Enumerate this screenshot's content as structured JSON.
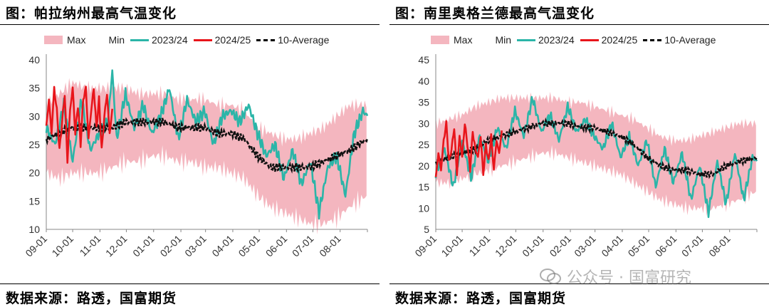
{
  "colors": {
    "max_min_band": "#f4b6bf",
    "season_2023_24": "#2bb5a8",
    "season_2024_25": "#e8151b",
    "ten_year_average": "#111111"
  },
  "chart_data": [
    {
      "type": "area",
      "title": "图：帕拉纳州最高气温变化",
      "source": "数据来源：路透，国富期货",
      "ylim": [
        10,
        40
      ],
      "yticks": [
        10,
        15,
        20,
        25,
        30,
        35,
        40
      ],
      "xlim": [
        0,
        365
      ],
      "x_tick_labels": [
        "09-01",
        "10-01",
        "11-01",
        "12-01",
        "01-01",
        "02-01",
        "03-01",
        "04-01",
        "05-01",
        "06-01",
        "07-01",
        "08-01"
      ],
      "x_tick_positions": [
        0,
        30,
        61,
        91,
        122,
        153,
        181,
        212,
        242,
        273,
        303,
        334
      ],
      "legend": [
        "Max",
        "Min",
        "2023/24",
        "2024/25",
        "10-Average"
      ],
      "series": [
        {
          "name": "Max",
          "x": [
            0,
            15,
            30,
            45,
            60,
            75,
            90,
            105,
            120,
            135,
            150,
            165,
            180,
            195,
            210,
            225,
            240,
            255,
            270,
            285,
            300,
            315,
            330,
            345,
            365
          ],
          "values": [
            32,
            34,
            36,
            35,
            35,
            35,
            35,
            34,
            34,
            34,
            33,
            33,
            33,
            32,
            32,
            31,
            28,
            27,
            26,
            26,
            27,
            28,
            30,
            32,
            32
          ]
        },
        {
          "name": "Min",
          "x": [
            0,
            15,
            30,
            45,
            60,
            75,
            90,
            105,
            120,
            135,
            150,
            165,
            180,
            195,
            210,
            225,
            240,
            255,
            270,
            285,
            300,
            315,
            330,
            345,
            365
          ],
          "values": [
            20,
            19,
            20,
            20,
            20,
            21,
            22,
            22,
            23,
            23,
            22,
            22,
            21,
            21,
            20,
            19,
            16,
            14,
            13,
            12,
            11,
            11,
            12,
            14,
            16
          ]
        },
        {
          "name": "2023/24",
          "x": [
            0,
            10,
            20,
            30,
            40,
            50,
            60,
            70,
            75,
            80,
            90,
            100,
            110,
            120,
            130,
            140,
            150,
            160,
            170,
            180,
            190,
            200,
            210,
            220,
            230,
            240,
            250,
            260,
            270,
            280,
            290,
            300,
            310,
            320,
            330,
            340,
            350,
            360,
            365
          ],
          "values": [
            28,
            25,
            32,
            22,
            33,
            24,
            27,
            29,
            38,
            26,
            34,
            28,
            32,
            27,
            30,
            35,
            26,
            33,
            29,
            31,
            25,
            30,
            31,
            29,
            32,
            27,
            23,
            25,
            19,
            24,
            18,
            22,
            13,
            21,
            23,
            16,
            27,
            31,
            30
          ]
        },
        {
          "name": "2024/25",
          "x": [
            0,
            3,
            6,
            9,
            12,
            15,
            18,
            21,
            24,
            27,
            30,
            33,
            36,
            39,
            42,
            45,
            48,
            51,
            54,
            57,
            60,
            63,
            66,
            69,
            72,
            75
          ],
          "values": [
            28,
            33,
            27,
            35,
            31,
            24,
            29,
            34,
            22,
            31,
            35,
            27,
            32,
            25,
            33,
            35,
            26,
            31,
            35,
            28,
            33,
            24,
            30,
            34,
            27,
            31
          ]
        },
        {
          "name": "10-Average",
          "x": [
            0,
            15,
            30,
            45,
            60,
            75,
            90,
            105,
            120,
            135,
            150,
            165,
            180,
            195,
            210,
            225,
            240,
            255,
            270,
            285,
            300,
            315,
            330,
            345,
            365
          ],
          "values": [
            26,
            27,
            28,
            28,
            28,
            28,
            29,
            29,
            29,
            29,
            28,
            28,
            28,
            27,
            27,
            26,
            23,
            21,
            21,
            21,
            21,
            22,
            23,
            24,
            26
          ]
        }
      ]
    },
    {
      "type": "area",
      "title": "图：南里奥格兰德最高气温变化",
      "source": "数据来源：路透，国富期货",
      "ylim": [
        5,
        45
      ],
      "yticks": [
        5,
        10,
        15,
        20,
        25,
        30,
        35,
        40,
        45
      ],
      "xlim": [
        0,
        365
      ],
      "x_tick_labels": [
        "09-01",
        "10-01",
        "11-01",
        "12-01",
        "01-01",
        "02-01",
        "03-01",
        "04-01",
        "05-01",
        "06-01",
        "07-01",
        "08-01"
      ],
      "x_tick_positions": [
        0,
        30,
        61,
        91,
        122,
        153,
        181,
        212,
        242,
        273,
        303,
        334
      ],
      "legend": [
        "Max",
        "Min",
        "2023/24",
        "2024/25",
        "10-Average"
      ],
      "series": [
        {
          "name": "Max",
          "x": [
            0,
            15,
            30,
            45,
            60,
            75,
            90,
            105,
            120,
            135,
            150,
            165,
            180,
            195,
            210,
            225,
            240,
            255,
            270,
            285,
            300,
            315,
            330,
            345,
            365
          ],
          "values": [
            30,
            31,
            32,
            34,
            35,
            36,
            36,
            36,
            36,
            36,
            35,
            35,
            34,
            33,
            32,
            31,
            29,
            27,
            26,
            26,
            27,
            28,
            29,
            30,
            30
          ]
        },
        {
          "name": "Min",
          "x": [
            0,
            15,
            30,
            45,
            60,
            75,
            90,
            105,
            120,
            135,
            150,
            165,
            180,
            195,
            210,
            225,
            240,
            255,
            270,
            285,
            300,
            315,
            330,
            345,
            365
          ],
          "values": [
            16,
            16,
            17,
            18,
            19,
            20,
            21,
            22,
            23,
            23,
            22,
            21,
            20,
            19,
            18,
            16,
            14,
            12,
            11,
            10,
            10,
            10,
            11,
            12,
            14
          ]
        },
        {
          "name": "2023/24",
          "x": [
            0,
            10,
            20,
            30,
            40,
            50,
            60,
            70,
            80,
            90,
            100,
            110,
            120,
            130,
            140,
            150,
            160,
            170,
            180,
            190,
            200,
            210,
            220,
            230,
            240,
            250,
            260,
            270,
            280,
            290,
            300,
            310,
            320,
            330,
            340,
            350,
            360,
            365
          ],
          "values": [
            18,
            24,
            15,
            26,
            17,
            27,
            21,
            29,
            24,
            33,
            27,
            36,
            28,
            32,
            26,
            34,
            28,
            31,
            27,
            24,
            30,
            22,
            27,
            20,
            26,
            15,
            24,
            16,
            23,
            12,
            20,
            9,
            21,
            11,
            23,
            12,
            22,
            21
          ]
        },
        {
          "name": "2024/25",
          "x": [
            0,
            3,
            6,
            9,
            12,
            15,
            18,
            21,
            24,
            27,
            30,
            33,
            36,
            39,
            42,
            45,
            48,
            51,
            54,
            57,
            60,
            63,
            66,
            69,
            72,
            75
          ],
          "values": [
            17,
            23,
            19,
            26,
            30,
            21,
            24,
            29,
            18,
            27,
            22,
            30,
            25,
            19,
            28,
            24,
            22,
            27,
            18,
            25,
            21,
            27,
            19,
            26,
            23,
            28
          ]
        },
        {
          "name": "10-Average",
          "x": [
            0,
            15,
            30,
            45,
            60,
            75,
            90,
            105,
            120,
            135,
            150,
            165,
            180,
            195,
            210,
            225,
            240,
            255,
            270,
            285,
            300,
            315,
            330,
            345,
            365
          ],
          "values": [
            21,
            22,
            23,
            24,
            26,
            27,
            28,
            29,
            30,
            30,
            30,
            29,
            29,
            28,
            27,
            25,
            22,
            20,
            19,
            19,
            18,
            18,
            20,
            21,
            22
          ]
        }
      ]
    }
  ],
  "watermark": {
    "text": "公众号 · 国富研究",
    "icon": "wechat-icon"
  }
}
